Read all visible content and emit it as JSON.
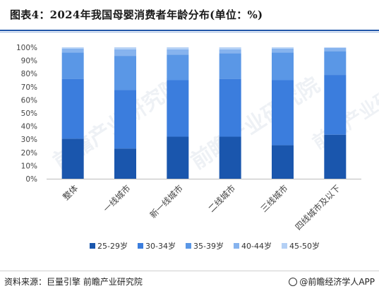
{
  "page": {
    "title": "图表4：2024年我国母婴消费者年龄分布(单位：%)",
    "source": "资料来源：巨量引擎 前瞻产业研究院",
    "brand": "@前瞻经济学人APP",
    "watermark": "前瞻产业研究院"
  },
  "chart_data": {
    "type": "bar",
    "stacked": true,
    "title": "图表4：2024年我国母婴消费者年龄分布(单位：%)",
    "categories": [
      "整体",
      "一线城市",
      "新一线城市",
      "二线城市",
      "三线城市",
      "四线城市及以下"
    ],
    "series": [
      {
        "name": "25-29岁",
        "color": "#1a56ad",
        "values": [
          30.5,
          23,
          32,
          32,
          25.5,
          33.5
        ]
      },
      {
        "name": "30-34岁",
        "color": "#3b7ddd",
        "values": [
          45.5,
          44.5,
          43,
          44,
          49.5,
          45.5
        ]
      },
      {
        "name": "35-39岁",
        "color": "#5a97e6",
        "values": [
          20,
          26,
          19.5,
          19.5,
          21,
          18
        ]
      },
      {
        "name": "40-44岁",
        "color": "#86b3ee",
        "values": [
          3,
          5,
          4,
          3,
          3,
          2.5
        ]
      },
      {
        "name": "45-50岁",
        "color": "#b4d0f5",
        "values": [
          1,
          1.5,
          1.5,
          1.5,
          1,
          0.5
        ]
      }
    ],
    "yticks": [
      "0%",
      "10%",
      "20%",
      "30%",
      "40%",
      "50%",
      "60%",
      "70%",
      "80%",
      "90%",
      "100%"
    ],
    "ylim": [
      0,
      100
    ],
    "xlabel": "",
    "ylabel": "",
    "grid": false,
    "legend": "bottom"
  }
}
